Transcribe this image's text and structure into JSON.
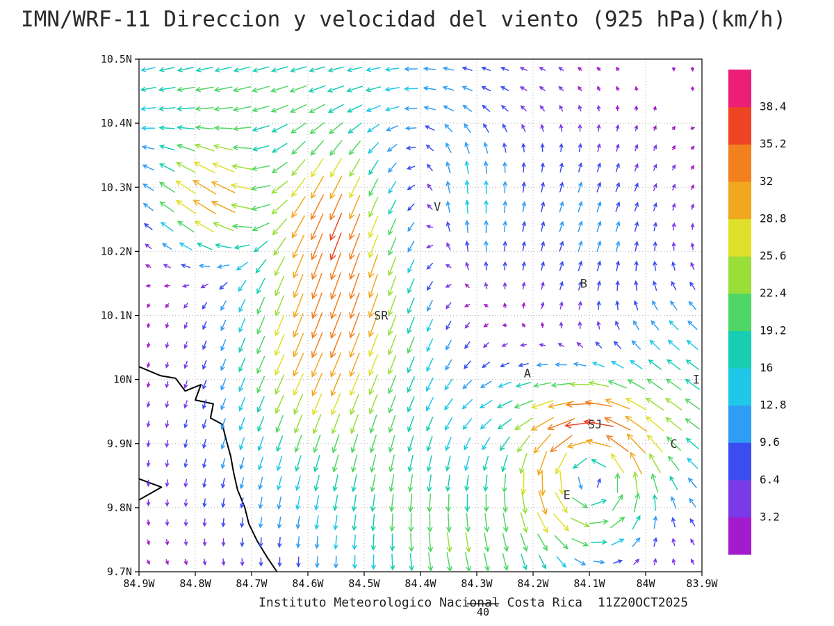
{
  "title": "IMN/WRF-11 Direccion y velocidad del viento (925 hPa)(km/h)",
  "caption": {
    "institute": "Instituto Meteorologico Nacional Costa Rica",
    "timestamp": "11Z20OCT2025"
  },
  "reference_vector": {
    "label": "40",
    "length_kmh": 40
  },
  "plot": {
    "lonW_max": 84.9,
    "lonW_min": 83.9,
    "lat_max": 10.5,
    "lat_min": 9.7
  },
  "axes": {
    "lat_ticks": [
      {
        "label": "10.5N",
        "value": 10.5
      },
      {
        "label": "10.4N",
        "value": 10.4
      },
      {
        "label": "10.3N",
        "value": 10.3
      },
      {
        "label": "10.2N",
        "value": 10.2
      },
      {
        "label": "10.1N",
        "value": 10.1
      },
      {
        "label": "10N",
        "value": 10.0
      },
      {
        "label": "9.9N",
        "value": 9.9
      },
      {
        "label": "9.8N",
        "value": 9.8
      },
      {
        "label": "9.7N",
        "value": 9.7
      }
    ],
    "lon_ticks": [
      {
        "label": "84.9W",
        "value": 84.9
      },
      {
        "label": "84.8W",
        "value": 84.8
      },
      {
        "label": "84.7W",
        "value": 84.7
      },
      {
        "label": "84.6W",
        "value": 84.6
      },
      {
        "label": "84.5W",
        "value": 84.5
      },
      {
        "label": "84.4W",
        "value": 84.4
      },
      {
        "label": "84.3W",
        "value": 84.3
      },
      {
        "label": "84.2W",
        "value": 84.2
      },
      {
        "label": "84.1W",
        "value": 84.1
      },
      {
        "label": "84W",
        "value": 84.0
      },
      {
        "label": "83.9W",
        "value": 83.9
      }
    ]
  },
  "colorbar": {
    "levels": [
      3.2,
      6.4,
      9.6,
      12.8,
      16,
      19.2,
      22.4,
      25.6,
      28.8,
      32,
      35.2,
      38.4
    ],
    "colors": [
      "#a21ccd",
      "#7a3ae8",
      "#3b4df0",
      "#2f9df5",
      "#1fc8e8",
      "#17cdb2",
      "#4fd664",
      "#9ade3a",
      "#dfe02a",
      "#f0a81e",
      "#f2801f",
      "#ee4423",
      "#ec1f77"
    ]
  },
  "stations": [
    {
      "label": "V",
      "lonW": 84.37,
      "lat": 10.27
    },
    {
      "label": "B",
      "lonW": 84.11,
      "lat": 10.15
    },
    {
      "label": "SR",
      "lonW": 84.47,
      "lat": 10.1
    },
    {
      "label": "A",
      "lonW": 84.21,
      "lat": 10.01
    },
    {
      "label": "I",
      "lonW": 83.91,
      "lat": 10.0
    },
    {
      "label": "SJ",
      "lonW": 84.09,
      "lat": 9.93
    },
    {
      "label": "C",
      "lonW": 83.95,
      "lat": 9.9
    },
    {
      "label": "E",
      "lonW": 84.14,
      "lat": 9.82
    }
  ],
  "coastline": [
    [
      [
        84.9,
        10.02
      ],
      [
        84.862,
        10.006
      ],
      [
        84.835,
        10.002
      ],
      [
        84.818,
        9.982
      ],
      [
        84.79,
        9.992
      ],
      [
        84.8,
        9.968
      ],
      [
        84.768,
        9.962
      ],
      [
        84.773,
        9.94
      ],
      [
        84.752,
        9.93
      ],
      [
        84.745,
        9.905
      ],
      [
        84.737,
        9.88
      ],
      [
        84.732,
        9.855
      ],
      [
        84.725,
        9.828
      ],
      [
        84.712,
        9.8
      ],
      [
        84.705,
        9.775
      ],
      [
        84.69,
        9.748
      ],
      [
        84.672,
        9.722
      ],
      [
        84.655,
        9.7
      ]
    ],
    [
      [
        84.9,
        9.845
      ],
      [
        84.86,
        9.832
      ],
      [
        84.9,
        9.812
      ]
    ]
  ],
  "chart_data": {
    "type": "quiver",
    "model": "IMN/WRF-11",
    "variable": "Direccion y velocidad del viento",
    "pressure_level": "925 hPa",
    "units": "km/h",
    "speed_levels": [
      3.2,
      6.4,
      9.6,
      12.8,
      16,
      19.2,
      22.4,
      25.6,
      28.8,
      32,
      35.2,
      38.4
    ],
    "lon_west_range": [
      84.9,
      83.9
    ],
    "lat_range": [
      9.7,
      10.5
    ],
    "grid": {
      "nx": 30,
      "ny": 26
    },
    "background_amp": 1.5,
    "features": [
      {
        "type": "flow",
        "center": {
          "lonW": 84.62,
          "lat": 10.46
        },
        "sigma": [
          0.28,
          0.07
        ],
        "dir": [
          -1,
          -0.2
        ],
        "speed": 15
      },
      {
        "type": "flow",
        "center": {
          "lonW": 84.85,
          "lat": 10.44
        },
        "sigma": [
          0.12,
          0.09
        ],
        "dir": [
          -1,
          0.05
        ],
        "speed": 8
      },
      {
        "type": "flow",
        "center": {
          "lonW": 84.77,
          "lat": 10.28
        },
        "sigma": [
          0.08,
          0.07
        ],
        "dir": [
          -0.75,
          0.66
        ],
        "speed": 34
      },
      {
        "type": "flow",
        "center": {
          "lonW": 84.58,
          "lat": 10.28
        },
        "sigma": [
          0.09,
          0.08
        ],
        "dir": [
          -0.5,
          -0.86
        ],
        "speed": 16
      },
      {
        "type": "flow",
        "center": {
          "lonW": 84.52,
          "lat": 10.16
        },
        "sigma": [
          0.15,
          0.14
        ],
        "dir": [
          -0.25,
          -1
        ],
        "speed": 27
      },
      {
        "type": "flow",
        "center": {
          "lonW": 84.6,
          "lat": 10.02
        },
        "sigma": [
          0.1,
          0.09
        ],
        "dir": [
          -0.55,
          -0.83
        ],
        "speed": 11
      },
      {
        "type": "flow",
        "center": {
          "lonW": 84.34,
          "lat": 10.26
        },
        "sigma": [
          0.07,
          0.11
        ],
        "dir": [
          0.05,
          1
        ],
        "speed": 18
      },
      {
        "type": "flow",
        "center": {
          "lonW": 84.1,
          "lat": 10.24
        },
        "sigma": [
          0.14,
          0.13
        ],
        "dir": [
          0.25,
          1
        ],
        "speed": 11
      },
      {
        "type": "flow",
        "center": {
          "lonW": 84.66,
          "lat": 9.86
        },
        "sigma": [
          0.2,
          0.14
        ],
        "dir": [
          -0.3,
          -1
        ],
        "speed": 11
      },
      {
        "type": "flow",
        "center": {
          "lonW": 84.38,
          "lat": 9.78
        },
        "sigma": [
          0.16,
          0.12
        ],
        "dir": [
          0.05,
          -1
        ],
        "speed": 12
      },
      {
        "type": "vortex",
        "center": {
          "lonW": 84.1,
          "lat": 9.85
        },
        "radius": 0.1,
        "speed": 20,
        "rotation": 1
      },
      {
        "type": "flow",
        "center": {
          "lonW": 84.17,
          "lat": 9.96
        },
        "sigma": [
          0.11,
          0.05
        ],
        "dir": [
          -1,
          0.05
        ],
        "speed": 16
      },
      {
        "type": "flow",
        "center": {
          "lonW": 83.93,
          "lat": 9.98
        },
        "sigma": [
          0.09,
          0.13
        ],
        "dir": [
          -0.75,
          0.5
        ],
        "speed": 20
      },
      {
        "type": "flow",
        "center": {
          "lonW": 84.3,
          "lat": 9.72
        },
        "sigma": [
          0.1,
          0.06
        ],
        "dir": [
          0.6,
          -0.8
        ],
        "speed": 10
      }
    ]
  }
}
